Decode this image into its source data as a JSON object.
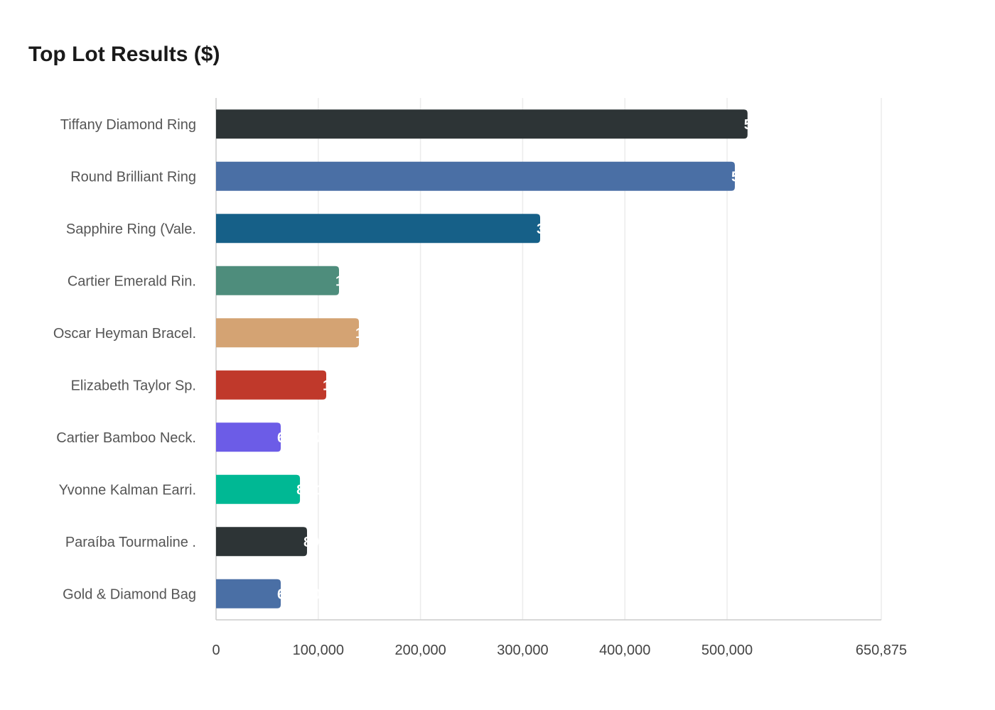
{
  "chart_data": {
    "type": "bar",
    "orientation": "horizontal",
    "title": "Top Lot Results ($)",
    "xlabel": "",
    "ylabel": "",
    "xlim": [
      0,
      650875
    ],
    "xticks": [
      0,
      100000,
      200000,
      300000,
      400000,
      500000,
      650875
    ],
    "xtick_labels": [
      "0",
      "100,000",
      "200,000",
      "300,000",
      "400,000",
      "500,000",
      "650,875"
    ],
    "grid": true,
    "categories": [
      "Tiffany Diamond Ring",
      "Round Brilliant Ring",
      "Sapphire Ring (Vale.",
      "Cartier Emerald Rin.",
      "Oscar Heyman Bracel.",
      "Elizabeth Taylor Sp.",
      "Cartier Bamboo Neck.",
      "Yvonne Kalman Earri.",
      "Paraíba Tourmaline .",
      "Gold & Diamond Bag"
    ],
    "values": [
      520000,
      507600,
      317100,
      120300,
      139800,
      107800,
      63300,
      82100,
      89000,
      63300
    ],
    "colors": [
      "#2d3436",
      "#4a6fa5",
      "#166088",
      "#4e8d7c",
      "#d4a373",
      "#c0392b",
      "#6c5ce7",
      "#00b894",
      "#2d3436",
      "#4a6fa5"
    ]
  }
}
